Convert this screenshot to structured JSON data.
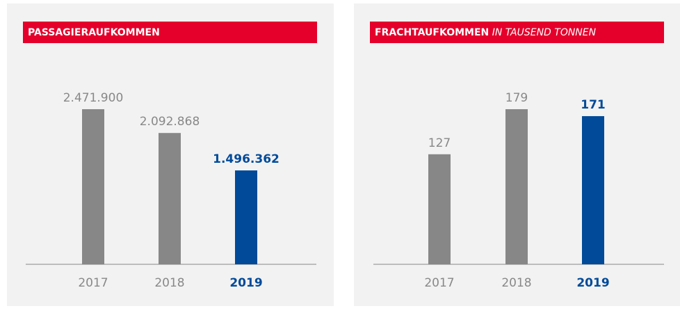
{
  "chart_data": [
    {
      "type": "bar",
      "title": "PASSAGIERAUFKOMMEN",
      "categories": [
        "2017",
        "2018",
        "2019"
      ],
      "values": [
        2471900,
        2092868,
        1496362
      ],
      "value_labels": [
        "2.471.900",
        "2.092.868",
        "1.496.362"
      ],
      "colors": [
        "#878787",
        "#878787",
        "#004a99"
      ]
    },
    {
      "type": "bar",
      "title": "FRACHTAUFKOMMEN",
      "subtitle": "IN TAUSEND TONNEN",
      "categories": [
        "2017",
        "2018",
        "2019"
      ],
      "values": [
        127,
        179,
        171
      ],
      "colors": [
        "#878787",
        "#878787",
        "#004a99"
      ]
    }
  ]
}
